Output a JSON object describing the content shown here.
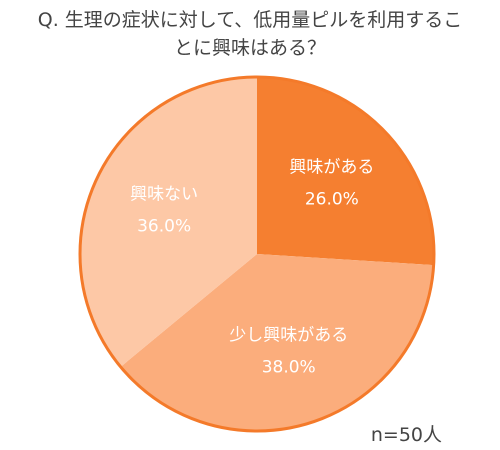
{
  "chart_data": {
    "type": "pie",
    "title": "Q. 生理の症状に対して、低用量ピルを利用することに興味はある？",
    "categories": [
      "興味がある",
      "少し興味がある",
      "興味ない"
    ],
    "values": [
      26,
      38,
      36
    ],
    "value_labels": [
      "26.0%",
      "38.0%",
      "36.0%"
    ],
    "colors": [
      "#f57f30",
      "#fbad7c",
      "#fdc8a6"
    ],
    "edge_color": "#f47a2a",
    "note": "n=50人"
  }
}
